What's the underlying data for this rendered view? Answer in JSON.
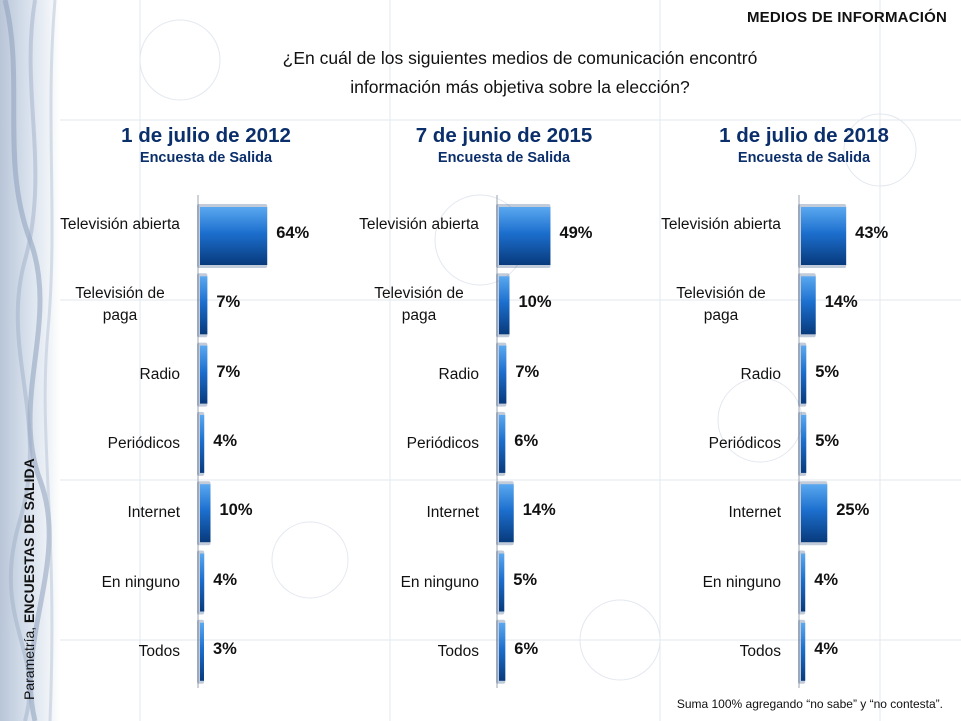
{
  "header": {
    "section_tag": "MEDIOS DE INFORMACIÓN",
    "question_line1": "¿En cuál de los siguientes medios de comunicación encontró",
    "question_line2": "información más objetiva sobre la elección?"
  },
  "side_caption": {
    "prefix": "Parametría, ",
    "bold": "ENCUESTAS DE SALIDA"
  },
  "footnote": "Suma 100% agregando “no sabe” y “no contesta”.",
  "colors": {
    "bar_light": "#3b8ee0",
    "bar_dark": "#0a3c82",
    "title": "#0b2f6b"
  },
  "chart_data": [
    {
      "type": "bar",
      "orientation": "horizontal",
      "title": "1 de julio de 2012",
      "subtitle": "Encuesta de Salida",
      "categories": [
        "Televisión abierta",
        "Televisión de paga",
        "Radio",
        "Periódicos",
        "Internet",
        "En ninguno",
        "Todos"
      ],
      "values": [
        64,
        7,
        7,
        4,
        10,
        4,
        3
      ],
      "labels": [
        "64%",
        "7%",
        "7%",
        "4%",
        "10%",
        "4%",
        "3%"
      ]
    },
    {
      "type": "bar",
      "orientation": "horizontal",
      "title": "7 de junio de 2015",
      "subtitle": "Encuesta de Salida",
      "categories": [
        "Televisión abierta",
        "Televisión de paga",
        "Radio",
        "Periódicos",
        "Internet",
        "En ninguno",
        "Todos"
      ],
      "values": [
        49,
        10,
        7,
        6,
        14,
        5,
        6
      ],
      "labels": [
        "49%",
        "10%",
        "7%",
        "6%",
        "14%",
        "5%",
        "6%"
      ]
    },
    {
      "type": "bar",
      "orientation": "horizontal",
      "title": "1 de julio de 2018",
      "subtitle": "Encuesta de Salida",
      "categories": [
        "Televisión abierta",
        "Televisión de paga",
        "Radio",
        "Periódicos",
        "Internet",
        "En ninguno",
        "Todos"
      ],
      "values": [
        43,
        14,
        5,
        5,
        25,
        4,
        4
      ],
      "labels": [
        "43%",
        "14%",
        "5%",
        "5%",
        "25%",
        "4%",
        "4%"
      ]
    }
  ]
}
